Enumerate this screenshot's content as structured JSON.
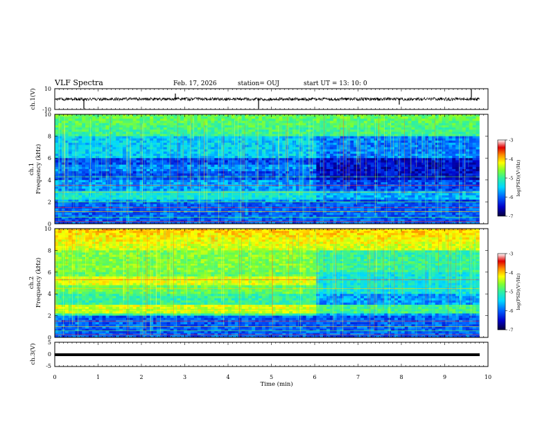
{
  "header": {
    "title": "VLF Spectra",
    "date": "Feb. 17, 2026",
    "station": "station= OUJ",
    "start_time": "start  UT  =   13: 10: 0"
  },
  "chart_data": [
    {
      "type": "line",
      "panel": "ch1-waveform",
      "ylabel": "ch.1(V)",
      "ylim": [
        -10,
        10
      ],
      "yticks": [
        "10",
        "-10"
      ],
      "xlim": [
        0,
        10
      ],
      "baseline": 0,
      "color": "#000000"
    },
    {
      "type": "heatmap",
      "panel": "ch1-spectrogram",
      "ylabel": "ch.1\nFrequency (kHz)",
      "ylabel_lines": [
        "ch.1",
        "Frequency  (kHz)"
      ],
      "ylim": [
        0,
        10
      ],
      "yticks": [
        "0",
        "2",
        "4",
        "6",
        "8",
        "10"
      ],
      "xlim": [
        0,
        10
      ],
      "data_end_min": 9.8,
      "colorbar": {
        "label": "log(PSD)(V²/Hz)",
        "min": -7,
        "max": -3,
        "ticks": [
          "-3",
          "-4",
          "-5",
          "-6",
          "-7"
        ]
      }
    },
    {
      "type": "heatmap",
      "panel": "ch2-spectrogram",
      "ylabel": "ch.2\nFrequency (kHz)",
      "ylabel_lines": [
        "ch.2",
        "Frequency  (kHz)"
      ],
      "ylim": [
        0,
        10
      ],
      "yticks": [
        "0",
        "2",
        "4",
        "6",
        "8",
        "10"
      ],
      "xlim": [
        0,
        10
      ],
      "data_end_min": 9.8,
      "colorbar": {
        "label": "log(PSD)(V²/Hz)",
        "min": -7,
        "max": -3,
        "ticks": [
          "-3",
          "-4",
          "-5",
          "-6",
          "-7"
        ]
      }
    },
    {
      "type": "line",
      "panel": "ch3-waveform",
      "ylabel": "ch.3(V)",
      "ylim": [
        -5,
        5
      ],
      "yticks": [
        "5",
        "0",
        "-5"
      ],
      "xlim": [
        0,
        10
      ],
      "baseline": -2,
      "color": "#000000"
    }
  ],
  "x_axis": {
    "label": "Time  (min)",
    "ticks": [
      "0",
      "1",
      "2",
      "3",
      "4",
      "5",
      "6",
      "7",
      "8",
      "9",
      "10"
    ]
  },
  "colors": {
    "axis": "#000000",
    "scale": [
      "#08003a",
      "#0000c8",
      "#0060ff",
      "#00d8ff",
      "#30f0a0",
      "#80ff30",
      "#ffff00",
      "#ff9000",
      "#e00000",
      "#ffffff"
    ]
  }
}
